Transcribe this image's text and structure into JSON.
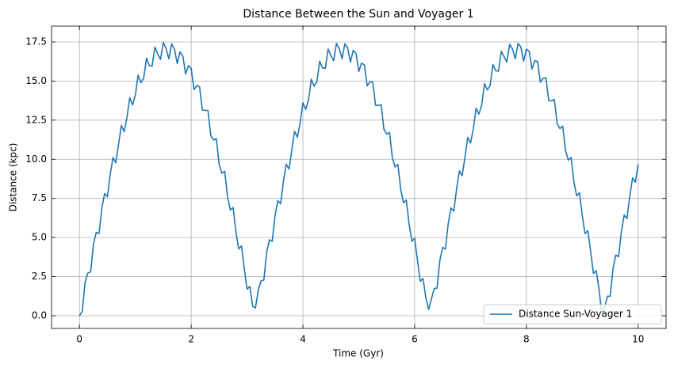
{
  "chart_data": {
    "type": "line",
    "title": "Distance Between the Sun and Voyager 1",
    "x_label": "Time (Gyr)",
    "y_label": "Distance (kpc)",
    "x": [
      0,
      0.05,
      0.1,
      0.15,
      0.2,
      0.25,
      0.3,
      0.35,
      0.4,
      0.45,
      0.5,
      0.55,
      0.6,
      0.65,
      0.7,
      0.75,
      0.8,
      0.85,
      0.9,
      0.95,
      1,
      1.05,
      1.1,
      1.15,
      1.2,
      1.25,
      1.3,
      1.35,
      1.4,
      1.45,
      1.5,
      1.55,
      1.6,
      1.65,
      1.7,
      1.75,
      1.8,
      1.85,
      1.9,
      1.95,
      2,
      2.05,
      2.1,
      2.15,
      2.2,
      2.25,
      2.3,
      2.35,
      2.4,
      2.45,
      2.5,
      2.55,
      2.6,
      2.65,
      2.7,
      2.75,
      2.8,
      2.85,
      2.9,
      2.95,
      3,
      3.05,
      3.1,
      3.15,
      3.2,
      3.25,
      3.3,
      3.35,
      3.4,
      3.45,
      3.5,
      3.55,
      3.6,
      3.65,
      3.7,
      3.75,
      3.8,
      3.85,
      3.9,
      3.95,
      4,
      4.05,
      4.1,
      4.15,
      4.2,
      4.25,
      4.3,
      4.35,
      4.4,
      4.45,
      4.5,
      4.55,
      4.6,
      4.65,
      4.7,
      4.75,
      4.8,
      4.85,
      4.9,
      4.95,
      5,
      5.05,
      5.1,
      5.15,
      5.2,
      5.25,
      5.3,
      5.35,
      5.4,
      5.45,
      5.5,
      5.55,
      5.6,
      5.65,
      5.7,
      5.75,
      5.8,
      5.85,
      5.9,
      5.95,
      6,
      6.05,
      6.1,
      6.15,
      6.2,
      6.25,
      6.3,
      6.35,
      6.4,
      6.45,
      6.5,
      6.55,
      6.6,
      6.65,
      6.7,
      6.75,
      6.8,
      6.85,
      6.9,
      6.95,
      7,
      7.05,
      7.1,
      7.15,
      7.2,
      7.25,
      7.3,
      7.35,
      7.4,
      7.45,
      7.5,
      7.55,
      7.6,
      7.65,
      7.7,
      7.75,
      7.8,
      7.85,
      7.9,
      7.95,
      8,
      8.05,
      8.1,
      8.15,
      8.2,
      8.25,
      8.3,
      8.35,
      8.4,
      8.45,
      8.5,
      8.55,
      8.6,
      8.65,
      8.7,
      8.75,
      8.8,
      8.85,
      8.9,
      8.95,
      9,
      9.05,
      9.1,
      9.15,
      9.2,
      9.25,
      9.3,
      9.35,
      9.4,
      9.45,
      9.5,
      9.55,
      9.6,
      9.65,
      9.7,
      9.75,
      9.8,
      9.85,
      9.9,
      9.95,
      10
    ],
    "series": [
      {
        "name": "Distance Sun-Voyager 1",
        "color": "#1f77b4",
        "values": [
          0,
          0.29,
          2.13,
          2.73,
          2.8,
          4.56,
          5.33,
          5.25,
          6.87,
          7.81,
          7.6,
          9.04,
          10.11,
          9.78,
          10.98,
          12.16,
          11.76,
          12.68,
          13.93,
          13.47,
          14.1,
          15.38,
          14.89,
          15.19,
          16.46,
          15.99,
          15.96,
          17.17,
          16.72,
          16.38,
          17.46,
          17.07,
          16.42,
          17.37,
          17.04,
          16.12,
          16.86,
          16.61,
          15.45,
          15.98,
          15.81,
          14.45,
          14.72,
          14.63,
          13.14,
          13.13,
          13.12,
          11.52,
          11.23,
          11.31,
          9.67,
          9.1,
          9.23,
          7.6,
          6.76,
          6.92,
          5.37,
          4.27,
          4.46,
          3.02,
          1.7,
          1.87,
          0.6,
          0.5,
          1.61,
          2.23,
          2.28,
          4.05,
          4.85,
          4.76,
          6.38,
          7.36,
          7.15,
          8.57,
          9.69,
          9.37,
          10.56,
          11.79,
          11.4,
          12.32,
          13.61,
          13.18,
          13.79,
          15.11,
          14.67,
          14.97,
          16.27,
          15.84,
          15.81,
          17.04,
          16.64,
          16.3,
          17.41,
          17.07,
          16.43,
          17.38,
          17.12,
          16.2,
          16.96,
          16.77,
          15.61,
          16.15,
          16.03,
          14.69,
          14.96,
          14.92,
          13.45,
          13.44,
          13.48,
          11.91,
          11.61,
          11.71,
          10.11,
          9.51,
          9.67,
          8.08,
          7.22,
          7.4,
          5.87,
          4.76,
          4.95,
          3.55,
          2.2,
          2.38,
          1.14,
          0.4,
          1.08,
          1.74,
          1.77,
          3.52,
          4.37,
          4.26,
          5.87,
          6.89,
          6.68,
          8.09,
          9.26,
          8.95,
          10.13,
          11.4,
          11.04,
          11.94,
          13.27,
          12.88,
          13.47,
          14.84,
          14.43,
          14.71,
          16.05,
          15.66,
          15.63,
          16.9,
          16.55,
          16.21,
          17.35,
          17.06,
          16.42,
          17.4,
          17.18,
          16.27,
          17.04,
          16.9,
          15.77,
          16.3,
          16.25,
          14.92,
          15.18,
          15.2,
          13.75,
          13.73,
          13.82,
          12.28,
          11.96,
          12.12,
          10.55,
          9.95,
          10.11,
          8.56,
          7.66,
          7.86,
          6.4,
          5.24,
          5.44,
          4.1,
          2.7,
          2.88,
          1.68,
          0.12,
          0.54,
          1.24,
          1.25,
          3,
          3.88,
          3.78,
          5.37,
          6.43,
          6.22,
          7.62,
          8.81,
          8.53,
          9.69
        ]
      }
    ],
    "xlim": [
      -0.5,
      10.5
    ],
    "ylim": [
      -0.81,
      18.51
    ],
    "xticks": [
      0,
      2,
      4,
      6,
      8,
      10
    ],
    "yticks": [
      {
        "value": 0,
        "label": "0.0"
      },
      2.5,
      {
        "value": 5,
        "label": "5.0"
      },
      7.5,
      {
        "value": 10,
        "label": "10.0"
      },
      12.5,
      {
        "value": 15,
        "label": "15.0"
      },
      17.5
    ],
    "grid": true,
    "legend": "lower right"
  }
}
